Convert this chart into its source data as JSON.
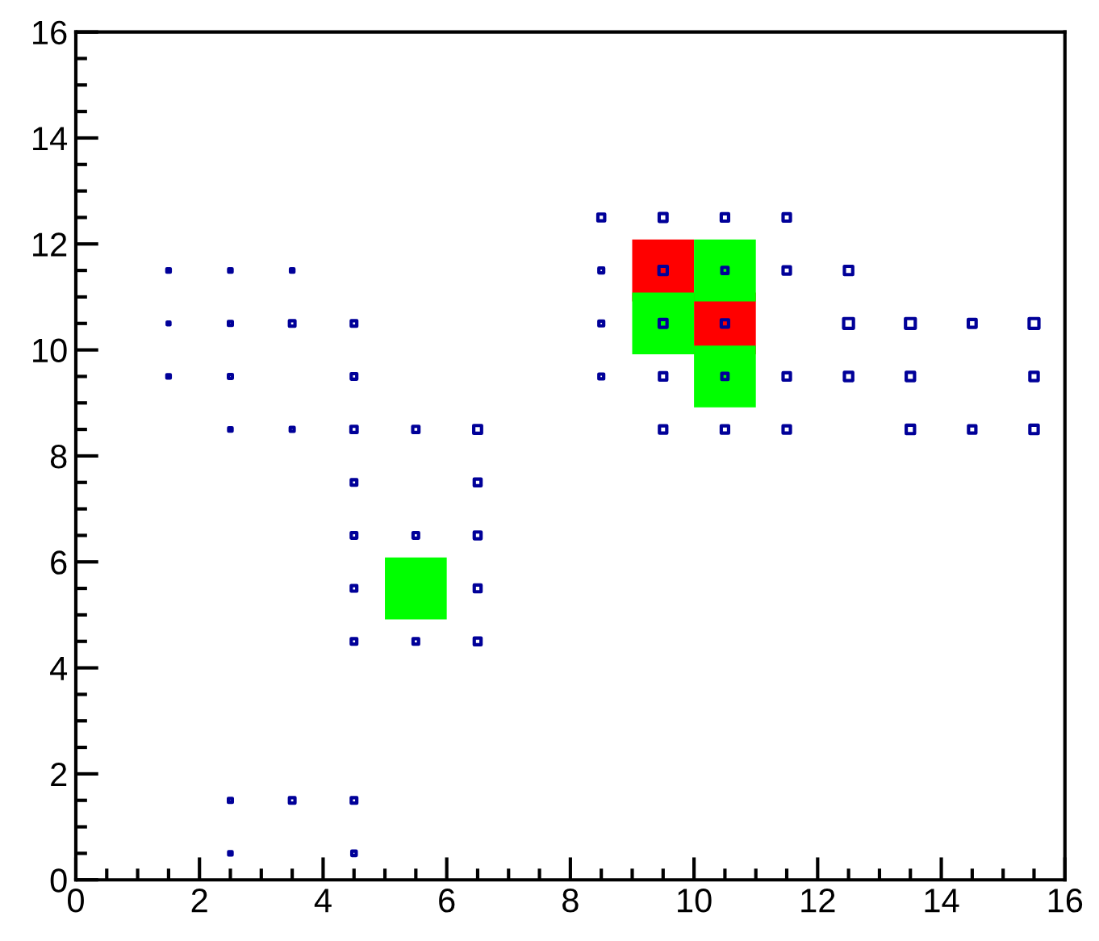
{
  "chart_data": {
    "type": "bubble",
    "marker": "square",
    "xlim": [
      0,
      16
    ],
    "ylim": [
      0,
      16
    ],
    "xticks": [
      0,
      2,
      4,
      6,
      8,
      10,
      12,
      14,
      16
    ],
    "yticks": [
      0,
      2,
      4,
      6,
      8,
      10,
      12,
      14,
      16
    ],
    "grid": false,
    "legend": false,
    "series": [
      {
        "type": "bubble",
        "color": "#ff0000",
        "x": [
          9.5,
          10.5
        ],
        "values": [
          11.5,
          10.5
        ],
        "sizes": [
          1,
          1
        ]
      },
      {
        "type": "bubble",
        "color": "#00ff00",
        "x": [
          5.5,
          10.5,
          9.5,
          10.5
        ],
        "values": [
          5.5,
          11.5,
          10.5,
          9.5
        ],
        "sizes": [
          1,
          1,
          1,
          1
        ]
      },
      {
        "type": "bubble",
        "color": "#000099",
        "x": [
          1.5,
          2.5,
          3.5,
          1.5,
          2.5,
          3.5,
          4.5,
          1.5,
          2.5,
          4.5,
          2.5,
          3.5,
          4.5,
          5.5,
          6.5,
          4.5,
          6.5,
          4.5,
          5.5,
          6.5,
          4.5,
          6.5,
          4.5,
          5.5,
          6.5,
          2.5,
          3.5,
          4.5,
          2.5,
          4.5,
          8.5,
          9.5,
          10.5,
          11.5,
          8.5,
          9.5,
          10.5,
          11.5,
          12.5,
          8.5,
          9.5,
          10.5,
          12.5,
          13.5,
          14.5,
          15.5,
          8.5,
          9.5,
          10.5,
          11.5,
          12.5,
          13.5,
          15.5,
          9.5,
          10.5,
          11.5,
          13.5,
          14.5,
          15.5
        ],
        "values": [
          11.5,
          11.5,
          11.5,
          10.5,
          10.5,
          10.5,
          10.5,
          9.5,
          9.5,
          9.5,
          8.5,
          8.5,
          8.5,
          8.5,
          8.5,
          7.5,
          7.5,
          6.5,
          6.5,
          6.5,
          5.5,
          5.5,
          4.5,
          4.5,
          4.5,
          1.5,
          1.5,
          1.5,
          0.5,
          0.5,
          12.5,
          12.5,
          12.5,
          12.5,
          11.5,
          11.5,
          11.5,
          11.5,
          11.5,
          10.5,
          10.5,
          10.5,
          10.5,
          10.5,
          10.5,
          10.5,
          9.5,
          9.5,
          9.5,
          9.5,
          9.5,
          9.5,
          9.5,
          8.5,
          8.5,
          8.5,
          8.5,
          8.5,
          8.5
        ],
        "sizes": [
          0.003,
          0.003,
          0.003,
          0.002,
          0.004,
          0.008,
          0.008,
          0.003,
          0.004,
          0.008,
          0.003,
          0.004,
          0.01,
          0.01,
          0.016,
          0.008,
          0.012,
          0.008,
          0.008,
          0.012,
          0.008,
          0.012,
          0.008,
          0.008,
          0.012,
          0.004,
          0.008,
          0.008,
          0.003,
          0.005,
          0.012,
          0.016,
          0.014,
          0.014,
          0.006,
          0.018,
          0.01,
          0.014,
          0.018,
          0.006,
          0.016,
          0.014,
          0.025,
          0.025,
          0.016,
          0.025,
          0.006,
          0.014,
          0.01,
          0.014,
          0.018,
          0.018,
          0.018,
          0.014,
          0.014,
          0.014,
          0.018,
          0.014,
          0.018
        ]
      }
    ]
  }
}
